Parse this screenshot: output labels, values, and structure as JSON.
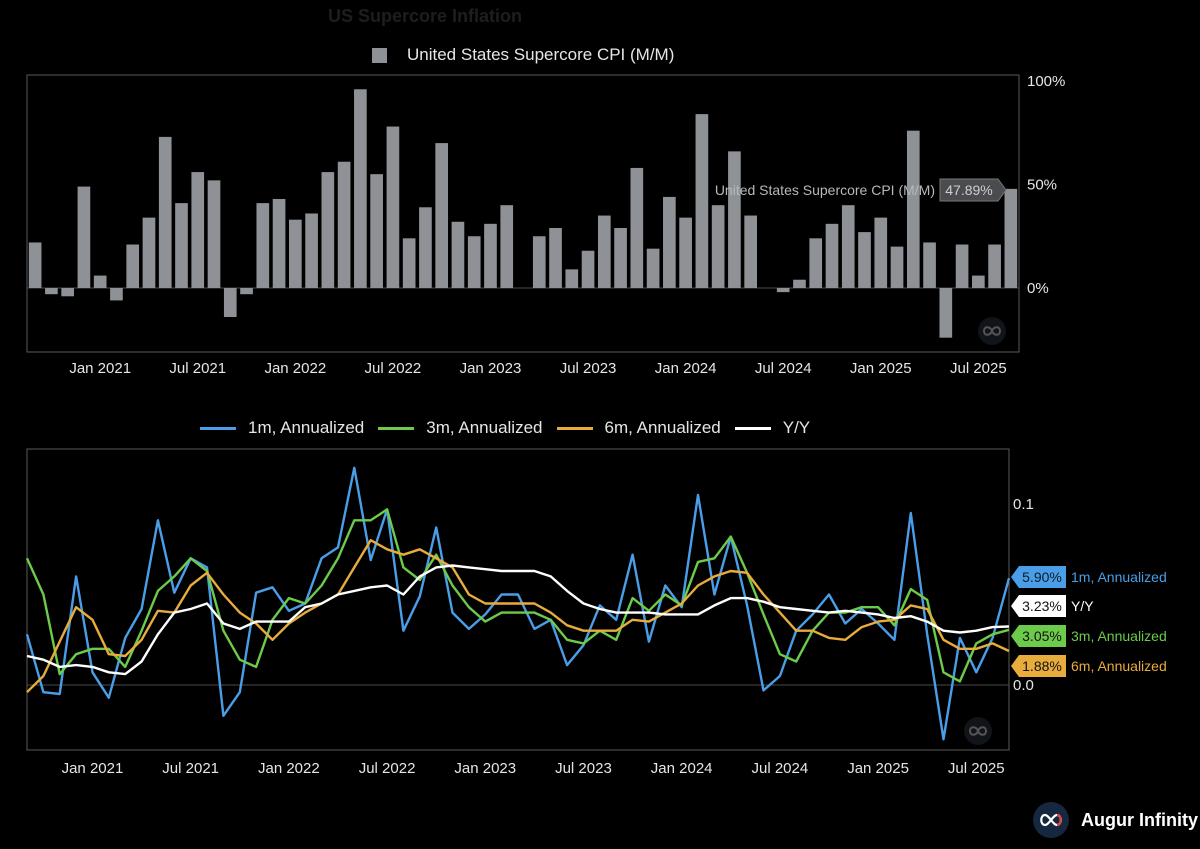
{
  "title": "US Supercore Inflation",
  "brand": {
    "name": "Augur Infinity",
    "logo_icon": "infinity-icon"
  },
  "chart_data": [
    {
      "type": "bar",
      "legend": [
        "United States Supercore CPI (M/M)"
      ],
      "series": [
        {
          "name": "United States Supercore CPI (M/M)",
          "color": "#8e9297",
          "x": [
            "2020-09",
            "2020-10",
            "2020-11",
            "2020-12",
            "2021-01",
            "2021-02",
            "2021-03",
            "2021-04",
            "2021-05",
            "2021-06",
            "2021-07",
            "2021-08",
            "2021-09",
            "2021-10",
            "2021-11",
            "2021-12",
            "2022-01",
            "2022-02",
            "2022-03",
            "2022-04",
            "2022-05",
            "2022-06",
            "2022-07",
            "2022-08",
            "2022-09",
            "2022-10",
            "2022-11",
            "2022-12",
            "2023-01",
            "2023-02",
            "2023-03",
            "2023-04",
            "2023-05",
            "2023-06",
            "2023-07",
            "2023-08",
            "2023-09",
            "2023-10",
            "2023-11",
            "2023-12",
            "2024-01",
            "2024-02",
            "2024-03",
            "2024-04",
            "2024-05",
            "2024-06",
            "2024-07",
            "2024-08",
            "2024-09",
            "2024-10",
            "2024-11",
            "2024-12",
            "2025-01",
            "2025-02",
            "2025-03",
            "2025-04",
            "2025-05",
            "2025-06",
            "2025-07",
            "2025-08",
            "2025-09"
          ],
          "values": [
            22,
            -3,
            -4,
            49,
            6,
            -6,
            21,
            34,
            73,
            41,
            56,
            52,
            -14,
            -3,
            41,
            43,
            33,
            36,
            56,
            61,
            96,
            55,
            78,
            24,
            39,
            70,
            32,
            25,
            31,
            40,
            0,
            25,
            29,
            9,
            18,
            35,
            29,
            58,
            19,
            44,
            34,
            84,
            40,
            66,
            35,
            0,
            -2,
            4,
            24,
            31,
            40,
            27,
            34,
            20,
            76,
            22,
            -24,
            21,
            6,
            21,
            47.89
          ]
        }
      ],
      "yticks": [
        "100%",
        "50%",
        "0%"
      ],
      "ylim": [
        -32,
        100
      ],
      "xticks": [
        "Jan 2021",
        "Jul 2021",
        "Jan 2022",
        "Jul 2022",
        "Jan 2023",
        "Jul 2023",
        "Jan 2024",
        "Jul 2024",
        "Jan 2025",
        "Jul 2025"
      ],
      "last_label": {
        "name": "United States Supercore CPI (M/M)",
        "value": "47.89%"
      }
    },
    {
      "type": "line",
      "x": [
        "2020-09",
        "2020-10",
        "2020-11",
        "2020-12",
        "2021-01",
        "2021-02",
        "2021-03",
        "2021-04",
        "2021-05",
        "2021-06",
        "2021-07",
        "2021-08",
        "2021-09",
        "2021-10",
        "2021-11",
        "2021-12",
        "2022-01",
        "2022-02",
        "2022-03",
        "2022-04",
        "2022-05",
        "2022-06",
        "2022-07",
        "2022-08",
        "2022-09",
        "2022-10",
        "2022-11",
        "2022-12",
        "2023-01",
        "2023-02",
        "2023-03",
        "2023-04",
        "2023-05",
        "2023-06",
        "2023-07",
        "2023-08",
        "2023-09",
        "2023-10",
        "2023-11",
        "2023-12",
        "2024-01",
        "2024-02",
        "2024-03",
        "2024-04",
        "2024-05",
        "2024-06",
        "2024-07",
        "2024-08",
        "2024-09",
        "2024-10",
        "2024-11",
        "2024-12",
        "2025-01",
        "2025-02",
        "2025-03",
        "2025-04",
        "2025-05",
        "2025-06",
        "2025-07",
        "2025-08",
        "2025-09"
      ],
      "series": [
        {
          "name": "1m, Annualized",
          "color": "#4a9ee8",
          "values": [
            0.028,
            -0.004,
            -0.005,
            0.06,
            0.007,
            -0.007,
            0.026,
            0.042,
            0.091,
            0.051,
            0.07,
            0.065,
            -0.017,
            -0.004,
            0.051,
            0.054,
            0.041,
            0.045,
            0.07,
            0.076,
            0.12,
            0.069,
            0.097,
            0.03,
            0.049,
            0.087,
            0.04,
            0.031,
            0.039,
            0.05,
            0.05,
            0.031,
            0.036,
            0.011,
            0.022,
            0.044,
            0.036,
            0.072,
            0.024,
            0.055,
            0.043,
            0.105,
            0.05,
            0.082,
            0.044,
            -0.003,
            0.005,
            0.03,
            0.039,
            0.05,
            0.034,
            0.042,
            0.034,
            0.025,
            0.095,
            0.028,
            -0.03,
            0.026,
            0.007,
            0.026,
            0.059
          ]
        },
        {
          "name": "3m, Annualized",
          "color": "#6ccb4a",
          "values": [
            0.07,
            0.05,
            0.006,
            0.017,
            0.02,
            0.02,
            0.01,
            0.03,
            0.052,
            0.06,
            0.07,
            0.063,
            0.03,
            0.014,
            0.01,
            0.036,
            0.048,
            0.045,
            0.055,
            0.07,
            0.091,
            0.091,
            0.097,
            0.065,
            0.058,
            0.072,
            0.055,
            0.043,
            0.035,
            0.04,
            0.04,
            0.04,
            0.036,
            0.025,
            0.023,
            0.03,
            0.025,
            0.048,
            0.041,
            0.05,
            0.044,
            0.068,
            0.07,
            0.082,
            0.062,
            0.039,
            0.017,
            0.013,
            0.03,
            0.04,
            0.04,
            0.043,
            0.043,
            0.033,
            0.053,
            0.047,
            0.007,
            0.002,
            0.023,
            0.028,
            0.0305
          ]
        },
        {
          "name": "6m, Annualized",
          "color": "#e8ac3c",
          "values": [
            -0.004,
            0.005,
            0.024,
            0.043,
            0.036,
            0.017,
            0.016,
            0.025,
            0.041,
            0.04,
            0.055,
            0.062,
            0.05,
            0.04,
            0.034,
            0.025,
            0.034,
            0.04,
            0.045,
            0.05,
            0.065,
            0.08,
            0.075,
            0.072,
            0.075,
            0.07,
            0.065,
            0.05,
            0.045,
            0.045,
            0.045,
            0.045,
            0.04,
            0.033,
            0.03,
            0.03,
            0.03,
            0.036,
            0.035,
            0.04,
            0.045,
            0.055,
            0.06,
            0.063,
            0.062,
            0.05,
            0.04,
            0.03,
            0.03,
            0.026,
            0.025,
            0.032,
            0.035,
            0.036,
            0.044,
            0.042,
            0.025,
            0.02,
            0.02,
            0.023,
            0.0188
          ]
        },
        {
          "name": "Y/Y",
          "color": "#ffffff",
          "values": [
            0.016,
            0.014,
            0.01,
            0.011,
            0.01,
            0.007,
            0.006,
            0.013,
            0.028,
            0.04,
            0.042,
            0.045,
            0.034,
            0.031,
            0.035,
            0.035,
            0.035,
            0.043,
            0.045,
            0.05,
            0.052,
            0.054,
            0.055,
            0.05,
            0.06,
            0.065,
            0.066,
            0.065,
            0.064,
            0.063,
            0.063,
            0.063,
            0.06,
            0.052,
            0.045,
            0.042,
            0.04,
            0.04,
            0.04,
            0.039,
            0.039,
            0.039,
            0.044,
            0.048,
            0.048,
            0.046,
            0.043,
            0.042,
            0.041,
            0.04,
            0.041,
            0.04,
            0.039,
            0.037,
            0.038,
            0.035,
            0.03,
            0.029,
            0.03,
            0.032,
            0.0323
          ]
        }
      ],
      "legend": [
        "1m, Annualized",
        "3m, Annualized",
        "6m, Annualized",
        "Y/Y"
      ],
      "yticks": [
        "0.1",
        "0.0"
      ],
      "ylim": [
        -0.036,
        0.13
      ],
      "xticks": [
        "Jan 2021",
        "Jul 2021",
        "Jan 2022",
        "Jul 2022",
        "Jan 2023",
        "Jul 2023",
        "Jan 2024",
        "Jul 2024",
        "Jan 2025",
        "Jul 2025"
      ],
      "last_labels": [
        {
          "name": "1m, Annualized",
          "value": "5.90%",
          "color": "#4a9ee8"
        },
        {
          "name": "Y/Y",
          "value": "3.23%",
          "color": "#ffffff"
        },
        {
          "name": "3m, Annualized",
          "value": "3.05%",
          "color": "#6ccb4a"
        },
        {
          "name": "6m, Annualized",
          "value": "1.88%",
          "color": "#e8ac3c"
        }
      ]
    }
  ]
}
